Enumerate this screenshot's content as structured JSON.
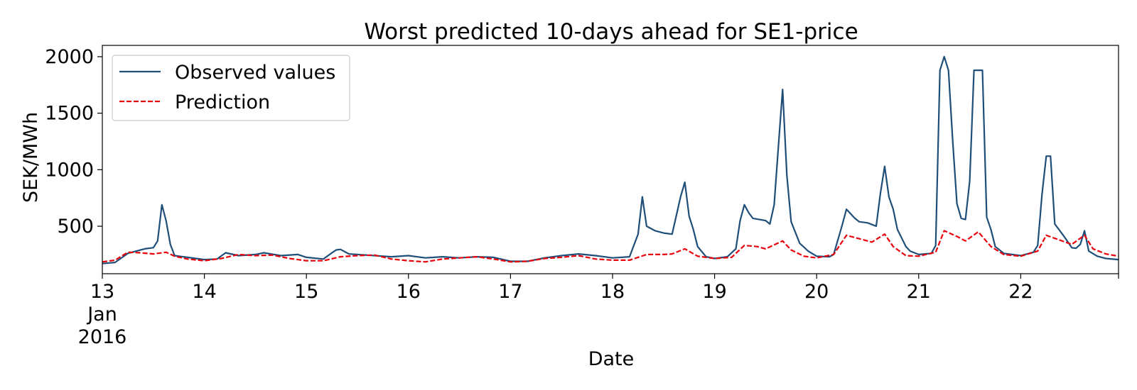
{
  "chart_data": {
    "type": "line",
    "title": "Worst predicted 10-days ahead for SE1-price",
    "xlabel": "Date",
    "ylabel": "SEK/MWh",
    "xlim": [
      "2016-01-13 00:00",
      "2016-01-22 23:00"
    ],
    "ylim": [
      80,
      2100
    ],
    "x_ticks": [
      {
        "date": "2016-01-13",
        "label": [
          "13",
          "Jan",
          "2016"
        ]
      },
      {
        "date": "2016-01-14",
        "label": [
          "14"
        ]
      },
      {
        "date": "2016-01-15",
        "label": [
          "15"
        ]
      },
      {
        "date": "2016-01-16",
        "label": [
          "16"
        ]
      },
      {
        "date": "2016-01-17",
        "label": [
          "17"
        ]
      },
      {
        "date": "2016-01-18",
        "label": [
          "18"
        ]
      },
      {
        "date": "2016-01-19",
        "label": [
          "19"
        ]
      },
      {
        "date": "2016-01-20",
        "label": [
          "20"
        ]
      },
      {
        "date": "2016-01-21",
        "label": [
          "21"
        ]
      },
      {
        "date": "2016-01-22",
        "label": [
          "22"
        ]
      }
    ],
    "y_ticks": [
      500,
      1000,
      1500,
      2000
    ],
    "grid": false,
    "legend": "top-left",
    "series": [
      {
        "name": "Observed values",
        "color": "#1f4e79",
        "style": "solid",
        "points": [
          [
            "2016-01-13 00:00",
            170
          ],
          [
            "2016-01-13 03:00",
            180
          ],
          [
            "2016-01-13 06:00",
            260
          ],
          [
            "2016-01-13 08:00",
            280
          ],
          [
            "2016-01-13 10:00",
            300
          ],
          [
            "2016-01-13 12:00",
            310
          ],
          [
            "2016-01-13 13:00",
            370
          ],
          [
            "2016-01-13 14:00",
            690
          ],
          [
            "2016-01-13 15:00",
            550
          ],
          [
            "2016-01-13 16:00",
            340
          ],
          [
            "2016-01-13 17:00",
            240
          ],
          [
            "2016-01-13 20:00",
            225
          ],
          [
            "2016-01-14 00:00",
            205
          ],
          [
            "2016-01-14 03:00",
            210
          ],
          [
            "2016-01-14 05:00",
            265
          ],
          [
            "2016-01-14 08:00",
            240
          ],
          [
            "2016-01-14 12:00",
            250
          ],
          [
            "2016-01-14 14:00",
            265
          ],
          [
            "2016-01-14 18:00",
            240
          ],
          [
            "2016-01-14 22:00",
            250
          ],
          [
            "2016-01-15 00:00",
            225
          ],
          [
            "2016-01-15 04:00",
            210
          ],
          [
            "2016-01-15 06:00",
            265
          ],
          [
            "2016-01-15 07:00",
            290
          ],
          [
            "2016-01-15 08:00",
            295
          ],
          [
            "2016-01-15 10:00",
            255
          ],
          [
            "2016-01-15 14:00",
            245
          ],
          [
            "2016-01-15 20:00",
            230
          ],
          [
            "2016-01-16 00:00",
            240
          ],
          [
            "2016-01-16 04:00",
            220
          ],
          [
            "2016-01-16 08:00",
            230
          ],
          [
            "2016-01-16 12:00",
            220
          ],
          [
            "2016-01-16 16:00",
            230
          ],
          [
            "2016-01-16 20:00",
            225
          ],
          [
            "2016-01-17 00:00",
            190
          ],
          [
            "2016-01-17 04:00",
            190
          ],
          [
            "2016-01-17 08:00",
            220
          ],
          [
            "2016-01-17 12:00",
            240
          ],
          [
            "2016-01-17 16:00",
            255
          ],
          [
            "2016-01-17 20:00",
            240
          ],
          [
            "2016-01-18 00:00",
            220
          ],
          [
            "2016-01-18 04:00",
            230
          ],
          [
            "2016-01-18 06:00",
            430
          ],
          [
            "2016-01-18 07:00",
            760
          ],
          [
            "2016-01-18 08:00",
            500
          ],
          [
            "2016-01-18 10:00",
            460
          ],
          [
            "2016-01-18 12:00",
            440
          ],
          [
            "2016-01-18 14:00",
            430
          ],
          [
            "2016-01-18 16:00",
            760
          ],
          [
            "2016-01-18 17:00",
            890
          ],
          [
            "2016-01-18 18:00",
            590
          ],
          [
            "2016-01-18 19:00",
            470
          ],
          [
            "2016-01-18 20:00",
            320
          ],
          [
            "2016-01-18 22:00",
            230
          ],
          [
            "2016-01-19 00:00",
            215
          ],
          [
            "2016-01-19 03:00",
            230
          ],
          [
            "2016-01-19 05:00",
            300
          ],
          [
            "2016-01-19 06:00",
            550
          ],
          [
            "2016-01-19 07:00",
            690
          ],
          [
            "2016-01-19 08:00",
            620
          ],
          [
            "2016-01-19 09:00",
            570
          ],
          [
            "2016-01-19 12:00",
            550
          ],
          [
            "2016-01-19 13:00",
            520
          ],
          [
            "2016-01-19 14:00",
            690
          ],
          [
            "2016-01-19 15:00",
            1200
          ],
          [
            "2016-01-19 16:00",
            1710
          ],
          [
            "2016-01-19 17:00",
            950
          ],
          [
            "2016-01-19 18:00",
            540
          ],
          [
            "2016-01-19 20:00",
            350
          ],
          [
            "2016-01-19 22:00",
            280
          ],
          [
            "2016-01-20 00:00",
            235
          ],
          [
            "2016-01-20 03:00",
            230
          ],
          [
            "2016-01-20 04:00",
            250
          ],
          [
            "2016-01-20 06:00",
            510
          ],
          [
            "2016-01-20 07:00",
            650
          ],
          [
            "2016-01-20 09:00",
            570
          ],
          [
            "2016-01-20 10:00",
            540
          ],
          [
            "2016-01-20 12:00",
            530
          ],
          [
            "2016-01-20 14:00",
            500
          ],
          [
            "2016-01-20 15:00",
            790
          ],
          [
            "2016-01-20 16:00",
            1030
          ],
          [
            "2016-01-20 17:00",
            760
          ],
          [
            "2016-01-20 18:00",
            650
          ],
          [
            "2016-01-20 19:00",
            470
          ],
          [
            "2016-01-20 21:00",
            320
          ],
          [
            "2016-01-20 22:00",
            280
          ],
          [
            "2016-01-21 00:00",
            250
          ],
          [
            "2016-01-21 03:00",
            260
          ],
          [
            "2016-01-21 04:00",
            330
          ],
          [
            "2016-01-21 05:00",
            1880
          ],
          [
            "2016-01-21 06:00",
            2000
          ],
          [
            "2016-01-21 07:00",
            1880
          ],
          [
            "2016-01-21 08:00",
            1250
          ],
          [
            "2016-01-21 09:00",
            700
          ],
          [
            "2016-01-21 10:00",
            570
          ],
          [
            "2016-01-21 11:00",
            560
          ],
          [
            "2016-01-21 12:00",
            900
          ],
          [
            "2016-01-21 13:00",
            1880
          ],
          [
            "2016-01-21 15:00",
            1880
          ],
          [
            "2016-01-21 16:00",
            580
          ],
          [
            "2016-01-21 17:00",
            470
          ],
          [
            "2016-01-21 18:00",
            320
          ],
          [
            "2016-01-21 20:00",
            260
          ],
          [
            "2016-01-22 00:00",
            240
          ],
          [
            "2016-01-22 03:00",
            270
          ],
          [
            "2016-01-22 04:00",
            330
          ],
          [
            "2016-01-22 05:00",
            780
          ],
          [
            "2016-01-22 06:00",
            1120
          ],
          [
            "2016-01-22 07:00",
            1120
          ],
          [
            "2016-01-22 08:00",
            520
          ],
          [
            "2016-01-22 10:00",
            420
          ],
          [
            "2016-01-22 12:00",
            310
          ],
          [
            "2016-01-22 13:00",
            305
          ],
          [
            "2016-01-22 14:00",
            340
          ],
          [
            "2016-01-22 15:00",
            460
          ],
          [
            "2016-01-22 16:00",
            280
          ],
          [
            "2016-01-22 18:00",
            235
          ],
          [
            "2016-01-22 20:00",
            215
          ],
          [
            "2016-01-22 23:00",
            205
          ]
        ]
      },
      {
        "name": "Prediction",
        "color": "#e8000b",
        "style": "dashed",
        "points": [
          [
            "2016-01-13 00:00",
            185
          ],
          [
            "2016-01-13 03:00",
            200
          ],
          [
            "2016-01-13 06:00",
            270
          ],
          [
            "2016-01-13 09:00",
            265
          ],
          [
            "2016-01-13 12:00",
            255
          ],
          [
            "2016-01-13 15:00",
            270
          ],
          [
            "2016-01-13 17:00",
            235
          ],
          [
            "2016-01-13 20:00",
            210
          ],
          [
            "2016-01-14 00:00",
            195
          ],
          [
            "2016-01-14 04:00",
            215
          ],
          [
            "2016-01-14 08:00",
            250
          ],
          [
            "2016-01-14 12:00",
            240
          ],
          [
            "2016-01-14 16:00",
            245
          ],
          [
            "2016-01-14 20:00",
            215
          ],
          [
            "2016-01-15 00:00",
            195
          ],
          [
            "2016-01-15 04:00",
            195
          ],
          [
            "2016-01-15 08:00",
            230
          ],
          [
            "2016-01-15 12:00",
            240
          ],
          [
            "2016-01-15 16:00",
            245
          ],
          [
            "2016-01-15 20:00",
            210
          ],
          [
            "2016-01-16 00:00",
            195
          ],
          [
            "2016-01-16 04:00",
            185
          ],
          [
            "2016-01-16 08:00",
            210
          ],
          [
            "2016-01-16 12:00",
            220
          ],
          [
            "2016-01-16 16:00",
            230
          ],
          [
            "2016-01-16 20:00",
            210
          ],
          [
            "2016-01-17 00:00",
            185
          ],
          [
            "2016-01-17 04:00",
            190
          ],
          [
            "2016-01-17 08:00",
            215
          ],
          [
            "2016-01-17 12:00",
            225
          ],
          [
            "2016-01-17 16:00",
            240
          ],
          [
            "2016-01-17 20:00",
            210
          ],
          [
            "2016-01-18 00:00",
            200
          ],
          [
            "2016-01-18 04:00",
            200
          ],
          [
            "2016-01-18 08:00",
            250
          ],
          [
            "2016-01-18 12:00",
            250
          ],
          [
            "2016-01-18 14:00",
            255
          ],
          [
            "2016-01-18 17:00",
            300
          ],
          [
            "2016-01-18 20:00",
            235
          ],
          [
            "2016-01-19 00:00",
            215
          ],
          [
            "2016-01-19 04:00",
            225
          ],
          [
            "2016-01-19 07:00",
            330
          ],
          [
            "2016-01-19 10:00",
            320
          ],
          [
            "2016-01-19 12:00",
            300
          ],
          [
            "2016-01-19 16:00",
            370
          ],
          [
            "2016-01-19 18:00",
            290
          ],
          [
            "2016-01-19 21:00",
            235
          ],
          [
            "2016-01-20 00:00",
            220
          ],
          [
            "2016-01-20 04:00",
            250
          ],
          [
            "2016-01-20 07:00",
            420
          ],
          [
            "2016-01-20 10:00",
            390
          ],
          [
            "2016-01-20 13:00",
            360
          ],
          [
            "2016-01-20 16:00",
            430
          ],
          [
            "2016-01-20 18:00",
            320
          ],
          [
            "2016-01-20 21:00",
            240
          ],
          [
            "2016-01-21 00:00",
            235
          ],
          [
            "2016-01-21 04:00",
            270
          ],
          [
            "2016-01-21 06:00",
            460
          ],
          [
            "2016-01-21 09:00",
            410
          ],
          [
            "2016-01-21 11:00",
            370
          ],
          [
            "2016-01-21 14:00",
            450
          ],
          [
            "2016-01-21 17:00",
            320
          ],
          [
            "2016-01-21 20:00",
            250
          ],
          [
            "2016-01-22 00:00",
            235
          ],
          [
            "2016-01-22 04:00",
            280
          ],
          [
            "2016-01-22 06:00",
            420
          ],
          [
            "2016-01-22 09:00",
            380
          ],
          [
            "2016-01-22 12:00",
            340
          ],
          [
            "2016-01-22 15:00",
            420
          ],
          [
            "2016-01-22 17:00",
            300
          ],
          [
            "2016-01-22 20:00",
            255
          ],
          [
            "2016-01-22 23:00",
            235
          ]
        ]
      }
    ]
  }
}
